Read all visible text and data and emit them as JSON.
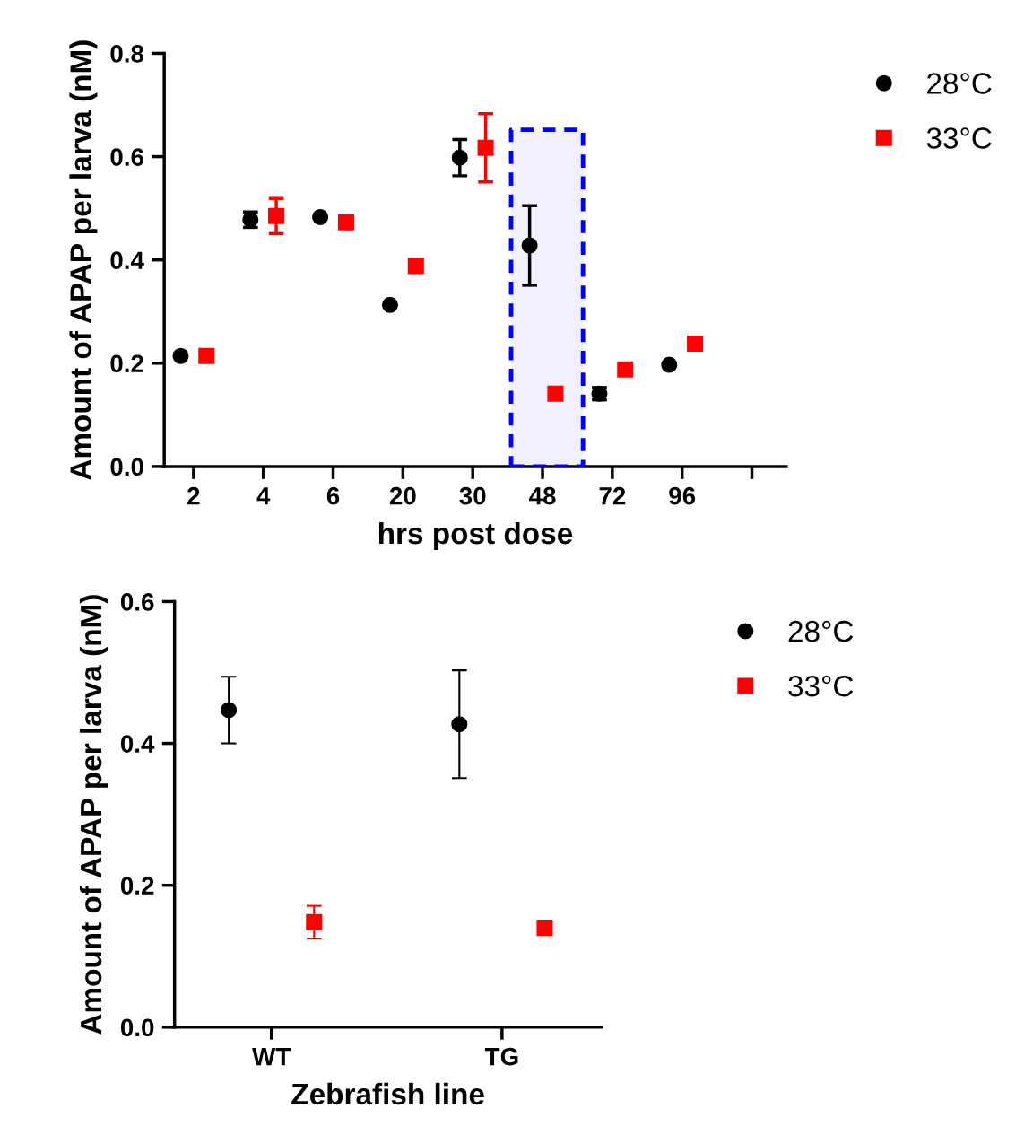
{
  "chart_data": [
    {
      "type": "scatter",
      "xlabel": "hrs post dose",
      "ylabel": "Amount of APAP per larva (nM)",
      "categories": [
        "2",
        "4",
        "6",
        "20",
        "30",
        "48",
        "72",
        "96",
        null
      ],
      "series": [
        {
          "name": "28°C",
          "color": "#000000",
          "marker": "circle",
          "values": [
            0.214,
            0.478,
            0.483,
            0.313,
            0.598,
            0.428,
            0.141,
            0.197,
            null
          ],
          "errors": [
            null,
            0.015,
            null,
            null,
            0.035,
            0.077,
            0.012,
            null,
            null
          ]
        },
        {
          "name": "33°C",
          "color": "#ff0000",
          "marker": "square",
          "values": [
            0.214,
            0.485,
            0.473,
            0.388,
            0.617,
            0.141,
            0.188,
            0.238,
            null
          ],
          "errors": [
            null,
            0.034,
            null,
            null,
            0.066,
            null,
            null,
            null,
            null
          ]
        }
      ],
      "ylim": [
        0,
        0.8
      ],
      "yticks": [
        {
          "value": 0,
          "label": "0.0"
        },
        0.2,
        0.4,
        0.6,
        0.8
      ],
      "bands": [
        {
          "axis": "x",
          "from": "48",
          "to": "48",
          "color": "#0000ff"
        }
      ],
      "grid": false,
      "legend": "top right"
    },
    {
      "type": "scatter",
      "xlabel": "Zebrafish line",
      "ylabel": "Amount of APAP per larva (nM)",
      "categories": [
        "WT",
        "TG"
      ],
      "series": [
        {
          "name": "28°C",
          "color": "#000000",
          "marker": "circle",
          "values": [
            0.447,
            0.427
          ],
          "errors": [
            0.047,
            0.076
          ]
        },
        {
          "name": "33°C",
          "color": "#ff0000",
          "marker": "square",
          "values": [
            0.148,
            0.14
          ],
          "errors": [
            0.023,
            null
          ]
        }
      ],
      "ylim": [
        0,
        0.6
      ],
      "yticks": [
        {
          "value": 0,
          "label": "0.0"
        },
        0.2,
        0.4,
        0.6
      ],
      "grid": false,
      "legend": "top right"
    }
  ]
}
